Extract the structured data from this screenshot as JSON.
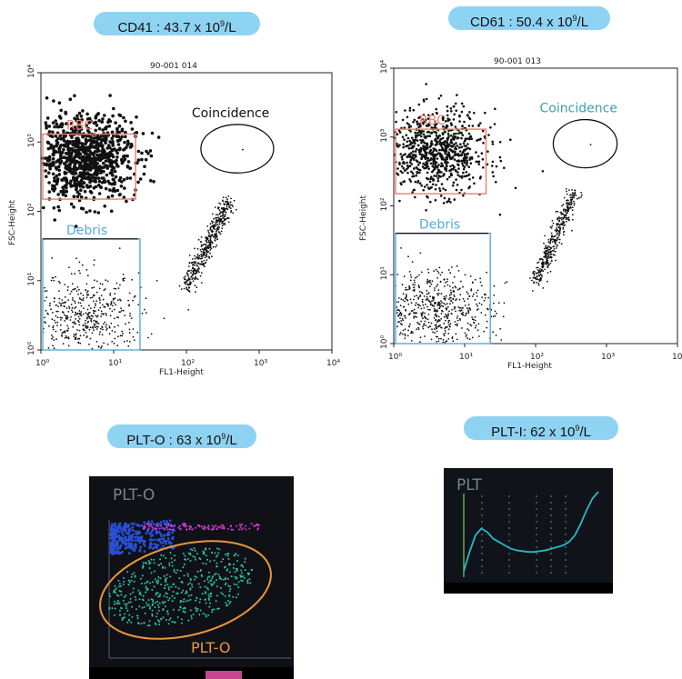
{
  "pills": [
    {
      "pre": "CD41 : 43.7 x 10",
      "sup": "9",
      "post": "/L"
    },
    {
      "pre": "CD61 : 50.4 x 10",
      "sup": "9",
      "post": "/L"
    },
    {
      "pre": "PLT-O : 63 x 10",
      "sup": "9",
      "post": "/L"
    },
    {
      "pre": "PLT-I: 62 x 10",
      "sup": "9",
      "post": "/L"
    }
  ],
  "colors": {
    "pill": "#8fd3f2",
    "rbc_gate": "#e8806e",
    "debris_gate": "#5aa8dc",
    "coincidence_text_cd61": "#3fa0b0",
    "screen_bg": "#0f1117",
    "plto_ellipse": "#e8963a",
    "plti_curve": "#2ab8c8"
  },
  "chart_data": [
    {
      "type": "scatter",
      "file_label": "90-001 014",
      "xlabel": "FL1-Height",
      "ylabel": "FSC-Height",
      "log_axes": true,
      "xlim": [
        1,
        10000
      ],
      "ylim": [
        1,
        10000
      ],
      "x_ticks": [
        "10⁰",
        "10¹",
        "10²",
        "10³",
        "10⁴"
      ],
      "y_ticks": [
        "10⁰",
        "10¹",
        "10²",
        "10³",
        "10⁴"
      ],
      "regions": [
        {
          "name": "RBC",
          "shape": "rect",
          "x": [
            1,
            20
          ],
          "y": [
            150,
            1300
          ]
        },
        {
          "name": "Coincidence",
          "shape": "ellipse",
          "cx": 500,
          "cy": 800,
          "rx_decades": 0.5,
          "ry_decades": 0.35
        },
        {
          "name": "Debris",
          "shape": "rect",
          "x": [
            1,
            23
          ],
          "y": [
            1,
            40
          ]
        }
      ],
      "populations": [
        {
          "name": "rbc",
          "density": "very high",
          "center": [
            4,
            600
          ],
          "spread_decades": [
            0.35,
            0.3
          ],
          "n": 900
        },
        {
          "name": "debris",
          "center": [
            4,
            3
          ],
          "spread_decades": [
            0.4,
            0.3
          ],
          "n": 500
        },
        {
          "name": "platelets",
          "diagonal_from": [
            100,
            8
          ],
          "diagonal_to": [
            400,
            150
          ],
          "n": 450
        }
      ]
    },
    {
      "type": "scatter",
      "file_label": "90-001 013",
      "xlabel": "FL1-Height",
      "ylabel": "FSC-Height",
      "log_axes": true,
      "xlim": [
        1,
        10000
      ],
      "ylim": [
        1,
        10000
      ],
      "x_ticks": [
        "10⁰",
        "10¹",
        "10²",
        "10³",
        "10⁴"
      ],
      "y_ticks": [
        "10⁰",
        "10¹",
        "10²",
        "10³",
        "10⁴"
      ],
      "regions": [
        {
          "name": "RBC",
          "shape": "rect",
          "x": [
            1,
            20
          ],
          "y": [
            150,
            1300
          ]
        },
        {
          "name": "Coincidence",
          "shape": "ellipse",
          "cx": 500,
          "cy": 800,
          "rx_decades": 0.45,
          "ry_decades": 0.35
        },
        {
          "name": "Debris",
          "shape": "rect",
          "x": [
            1,
            23
          ],
          "y": [
            1,
            40
          ]
        }
      ],
      "populations": [
        {
          "name": "rbc",
          "density": "high",
          "center": [
            4,
            600
          ],
          "spread_decades": [
            0.35,
            0.3
          ],
          "n": 800
        },
        {
          "name": "debris",
          "center": [
            4,
            3
          ],
          "spread_decades": [
            0.4,
            0.3
          ],
          "n": 600
        },
        {
          "name": "platelets",
          "diagonal_from": [
            100,
            8
          ],
          "diagonal_to": [
            350,
            150
          ],
          "n": 380
        }
      ]
    },
    {
      "type": "scatter",
      "title": "PLT-O",
      "region_label": "PLT-O",
      "populations": [
        {
          "name": "plt-o",
          "color": "#2ec4a8",
          "n": 500
        },
        {
          "name": "top-band-blue",
          "color": "#2a4fd8",
          "n": 350
        },
        {
          "name": "top-band-magenta",
          "color": "#d23bd0",
          "n": 120
        }
      ]
    },
    {
      "type": "line",
      "title": "PLT",
      "series": [
        {
          "values": [
            0.05,
            0.28,
            0.48,
            0.56,
            0.52,
            0.44,
            0.4,
            0.36,
            0.32,
            0.3,
            0.29,
            0.28,
            0.28,
            0.29,
            0.3,
            0.32,
            0.34,
            0.36,
            0.4,
            0.48,
            0.62,
            0.78,
            0.92,
            1.0
          ]
        }
      ]
    }
  ]
}
